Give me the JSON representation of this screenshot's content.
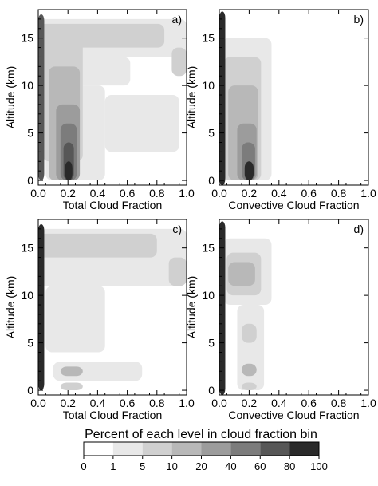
{
  "chart_data": [
    {
      "type": "heatmap",
      "panel_label": "a)",
      "xlabel": "Total Cloud Fraction",
      "ylabel": "Altitude (km)",
      "xlim": [
        0,
        1
      ],
      "ylim": [
        -0.5,
        18
      ],
      "xticks": [
        "0.0",
        "0.2",
        "0.4",
        "0.6",
        "0.8",
        "1.0"
      ],
      "yticks": [
        "0",
        "5",
        "10",
        "15"
      ],
      "blobs": [
        {
          "x0": 0,
          "x1": 1.0,
          "y0": 13,
          "y1": 17,
          "level": 1
        },
        {
          "x0": 0,
          "x1": 0.62,
          "y0": 10,
          "y1": 13,
          "level": 1
        },
        {
          "x0": 0.05,
          "x1": 0.45,
          "y0": 0,
          "y1": 10,
          "level": 1
        },
        {
          "x0": 0.45,
          "x1": 0.95,
          "y0": 3,
          "y1": 9,
          "level": 1
        },
        {
          "x0": 0,
          "x1": 0.85,
          "y0": 14,
          "y1": 16.5,
          "level": 2
        },
        {
          "x0": 0.9,
          "x1": 1.0,
          "y0": 11,
          "y1": 14,
          "level": 2
        },
        {
          "x0": 0.03,
          "x1": 0.3,
          "y0": 2,
          "y1": 15,
          "level": 2
        },
        {
          "x0": 0.07,
          "x1": 0.28,
          "y0": 0,
          "y1": 12,
          "level": 3
        },
        {
          "x0": 0.12,
          "x1": 0.28,
          "y0": 0,
          "y1": 8,
          "level": 4
        },
        {
          "x0": 0.15,
          "x1": 0.26,
          "y0": 0,
          "y1": 6,
          "level": 5
        },
        {
          "x0": 0.17,
          "x1": 0.24,
          "y0": 0,
          "y1": 4,
          "level": 6
        },
        {
          "x0": 0.18,
          "x1": 0.23,
          "y0": 0,
          "y1": 2,
          "level": 7
        },
        {
          "x0": 0.0,
          "x1": 0.04,
          "y0": 0,
          "y1": 17.5,
          "level": 6
        }
      ]
    },
    {
      "type": "heatmap",
      "panel_label": "b)",
      "xlabel": "Convective Cloud Fraction",
      "ylabel": "Altitude (km)",
      "xlim": [
        0,
        1
      ],
      "ylim": [
        -0.5,
        18
      ],
      "xticks": [
        "0.0",
        "0.2",
        "0.4",
        "0.6",
        "0.8",
        "1.0"
      ],
      "yticks": [
        "0",
        "5",
        "10",
        "15"
      ],
      "blobs": [
        {
          "x0": 0.02,
          "x1": 0.35,
          "y0": 0,
          "y1": 15,
          "level": 1
        },
        {
          "x0": 0.03,
          "x1": 0.28,
          "y0": 0,
          "y1": 13,
          "level": 2
        },
        {
          "x0": 0.06,
          "x1": 0.26,
          "y0": 0,
          "y1": 10,
          "level": 3
        },
        {
          "x0": 0.12,
          "x1": 0.25,
          "y0": 0,
          "y1": 6,
          "level": 4
        },
        {
          "x0": 0.15,
          "x1": 0.24,
          "y0": 0,
          "y1": 4,
          "level": 5
        },
        {
          "x0": 0.17,
          "x1": 0.23,
          "y0": 0,
          "y1": 2,
          "level": 7
        },
        {
          "x0": 0.0,
          "x1": 0.04,
          "y0": -0.5,
          "y1": 17.8,
          "level": 7
        }
      ]
    },
    {
      "type": "heatmap",
      "panel_label": "c)",
      "xlabel": "Total Cloud Fraction",
      "ylabel": "Altitude (km)",
      "xlim": [
        0,
        1
      ],
      "ylim": [
        -0.5,
        18
      ],
      "xticks": [
        "0.0",
        "0.2",
        "0.4",
        "0.6",
        "0.8",
        "1.0"
      ],
      "yticks": [
        "0",
        "5",
        "10",
        "15"
      ],
      "blobs": [
        {
          "x0": 0,
          "x1": 1.0,
          "y0": 11,
          "y1": 17,
          "level": 1
        },
        {
          "x0": 0.05,
          "x1": 0.45,
          "y0": 4,
          "y1": 11,
          "level": 1
        },
        {
          "x0": 0.1,
          "x1": 0.7,
          "y0": 1,
          "y1": 3,
          "level": 1
        },
        {
          "x0": 0.0,
          "x1": 0.8,
          "y0": 14,
          "y1": 16.5,
          "level": 2
        },
        {
          "x0": 0.88,
          "x1": 1.0,
          "y0": 11,
          "y1": 14,
          "level": 2
        },
        {
          "x0": 0.15,
          "x1": 0.3,
          "y0": 1.5,
          "y1": 2.5,
          "level": 3
        },
        {
          "x0": 0.15,
          "x1": 0.3,
          "y0": 0,
          "y1": 0.8,
          "level": 2
        },
        {
          "x0": 0.0,
          "x1": 0.04,
          "y0": 0,
          "y1": 17.5,
          "level": 7
        }
      ]
    },
    {
      "type": "heatmap",
      "panel_label": "d)",
      "xlabel": "Convective Cloud Fraction",
      "ylabel": "Altitude (km)",
      "xlim": [
        0,
        1
      ],
      "ylim": [
        -0.5,
        18
      ],
      "xticks": [
        "0.0",
        "0.2",
        "0.4",
        "0.6",
        "0.8",
        "1.0"
      ],
      "yticks": [
        "0",
        "5",
        "10",
        "15"
      ],
      "blobs": [
        {
          "x0": 0.03,
          "x1": 0.35,
          "y0": 9,
          "y1": 16,
          "level": 1
        },
        {
          "x0": 0.12,
          "x1": 0.3,
          "y0": 0,
          "y1": 9,
          "level": 1
        },
        {
          "x0": 0.05,
          "x1": 0.28,
          "y0": 10,
          "y1": 14.5,
          "level": 2
        },
        {
          "x0": 0.06,
          "x1": 0.24,
          "y0": 11,
          "y1": 13.5,
          "level": 3
        },
        {
          "x0": 0.15,
          "x1": 0.25,
          "y0": 5,
          "y1": 7,
          "level": 2
        },
        {
          "x0": 0.15,
          "x1": 0.25,
          "y0": 1.5,
          "y1": 2.8,
          "level": 3
        },
        {
          "x0": 0.15,
          "x1": 0.25,
          "y0": 0,
          "y1": 0.8,
          "level": 2
        },
        {
          "x0": 0.0,
          "x1": 0.04,
          "y0": -0.5,
          "y1": 17.8,
          "level": 7
        }
      ]
    }
  ],
  "colorbar": {
    "title": "Percent of each level in cloud fraction  bin",
    "ticks": [
      "0",
      "1",
      "5",
      "10",
      "20",
      "40",
      "60",
      "80",
      "100"
    ],
    "colors": [
      "#ffffff",
      "#e8e8e8",
      "#d0d0d0",
      "#b8b8b8",
      "#9c9c9c",
      "#7c7c7c",
      "#575757",
      "#2a2a2a"
    ]
  }
}
